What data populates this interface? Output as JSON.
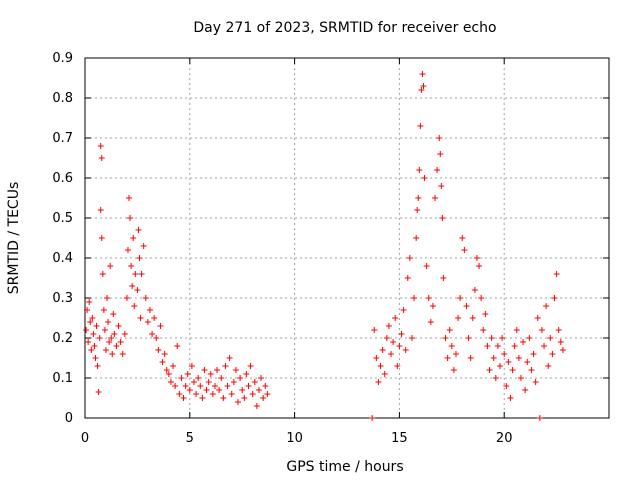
{
  "chart_data": {
    "type": "scatter",
    "title": "Day 271 of 2023, SRMTID for receiver echo",
    "xlabel": "GPS time / hours",
    "ylabel": "SRMTID / TECUs",
    "xlim": [
      0,
      25
    ],
    "ylim": [
      0,
      0.9
    ],
    "xticks": [
      0,
      5,
      10,
      15,
      20
    ],
    "yticks": [
      0,
      0.1,
      0.2,
      0.3,
      0.4,
      0.5,
      0.6,
      0.7,
      0.8,
      0.9
    ],
    "xtick_labels": [
      "0",
      "5",
      "10",
      "15",
      "20"
    ],
    "ytick_labels": [
      "0",
      "0.1",
      "0.2",
      "0.3",
      "0.4",
      "0.5",
      "0.6",
      "0.7",
      "0.8",
      "0.9"
    ],
    "grid": true,
    "marker": "+",
    "color": "#ff0000",
    "series": [
      {
        "name": "SRMTID",
        "points": [
          [
            0.05,
            0.22
          ],
          [
            0.1,
            0.27
          ],
          [
            0.15,
            0.19
          ],
          [
            0.2,
            0.29
          ],
          [
            0.25,
            0.24
          ],
          [
            0.3,
            0.17
          ],
          [
            0.35,
            0.25
          ],
          [
            0.4,
            0.21
          ],
          [
            0.45,
            0.18
          ],
          [
            0.5,
            0.15
          ],
          [
            0.55,
            0.23
          ],
          [
            0.6,
            0.13
          ],
          [
            0.65,
            0.065
          ],
          [
            0.7,
            0.2
          ],
          [
            0.75,
            0.52
          ],
          [
            0.75,
            0.68
          ],
          [
            0.8,
            0.65
          ],
          [
            0.8,
            0.45
          ],
          [
            0.85,
            0.36
          ],
          [
            0.9,
            0.27
          ],
          [
            0.95,
            0.22
          ],
          [
            1.0,
            0.17
          ],
          [
            1.05,
            0.3
          ],
          [
            1.1,
            0.24
          ],
          [
            1.15,
            0.19
          ],
          [
            1.2,
            0.38
          ],
          [
            1.25,
            0.2
          ],
          [
            1.3,
            0.16
          ],
          [
            1.35,
            0.26
          ],
          [
            1.4,
            0.21
          ],
          [
            1.5,
            0.18
          ],
          [
            1.6,
            0.23
          ],
          [
            1.7,
            0.19
          ],
          [
            1.8,
            0.16
          ],
          [
            1.9,
            0.21
          ],
          [
            2.0,
            0.3
          ],
          [
            2.05,
            0.42
          ],
          [
            2.1,
            0.55
          ],
          [
            2.15,
            0.5
          ],
          [
            2.2,
            0.38
          ],
          [
            2.25,
            0.33
          ],
          [
            2.3,
            0.45
          ],
          [
            2.35,
            0.28
          ],
          [
            2.4,
            0.36
          ],
          [
            2.5,
            0.32
          ],
          [
            2.55,
            0.47
          ],
          [
            2.6,
            0.4
          ],
          [
            2.65,
            0.25
          ],
          [
            2.7,
            0.36
          ],
          [
            2.8,
            0.43
          ],
          [
            2.9,
            0.3
          ],
          [
            3.0,
            0.24
          ],
          [
            3.1,
            0.27
          ],
          [
            3.2,
            0.21
          ],
          [
            3.3,
            0.25
          ],
          [
            3.4,
            0.2
          ],
          [
            3.5,
            0.17
          ],
          [
            3.6,
            0.23
          ],
          [
            3.7,
            0.14
          ],
          [
            3.8,
            0.16
          ],
          [
            3.9,
            0.12
          ],
          [
            4.0,
            0.11
          ],
          [
            4.1,
            0.09
          ],
          [
            4.2,
            0.13
          ],
          [
            4.3,
            0.08
          ],
          [
            4.4,
            0.18
          ],
          [
            4.5,
            0.06
          ],
          [
            4.6,
            0.1
          ],
          [
            4.7,
            0.05
          ],
          [
            4.8,
            0.08
          ],
          [
            4.9,
            0.11
          ],
          [
            5.0,
            0.07
          ],
          [
            5.1,
            0.13
          ],
          [
            5.2,
            0.09
          ],
          [
            5.3,
            0.06
          ],
          [
            5.4,
            0.1
          ],
          [
            5.5,
            0.08
          ],
          [
            5.6,
            0.05
          ],
          [
            5.7,
            0.12
          ],
          [
            5.8,
            0.07
          ],
          [
            5.9,
            0.09
          ],
          [
            6.0,
            0.11
          ],
          [
            6.1,
            0.06
          ],
          [
            6.2,
            0.08
          ],
          [
            6.3,
            0.12
          ],
          [
            6.4,
            0.07
          ],
          [
            6.5,
            0.1
          ],
          [
            6.6,
            0.05
          ],
          [
            6.7,
            0.13
          ],
          [
            6.8,
            0.08
          ],
          [
            6.9,
            0.15
          ],
          [
            7.0,
            0.06
          ],
          [
            7.1,
            0.09
          ],
          [
            7.2,
            0.12
          ],
          [
            7.3,
            0.04
          ],
          [
            7.4,
            0.1
          ],
          [
            7.5,
            0.07
          ],
          [
            7.6,
            0.05
          ],
          [
            7.7,
            0.11
          ],
          [
            7.8,
            0.08
          ],
          [
            7.9,
            0.13
          ],
          [
            8.0,
            0.06
          ],
          [
            8.1,
            0.09
          ],
          [
            8.2,
            0.03
          ],
          [
            8.3,
            0.07
          ],
          [
            8.4,
            0.1
          ],
          [
            8.5,
            0.05
          ],
          [
            8.6,
            0.08
          ],
          [
            8.7,
            0.06
          ],
          [
            13.7,
            0.0
          ],
          [
            13.8,
            0.22
          ],
          [
            13.9,
            0.15
          ],
          [
            14.0,
            0.09
          ],
          [
            14.1,
            0.13
          ],
          [
            14.2,
            0.17
          ],
          [
            14.3,
            0.11
          ],
          [
            14.4,
            0.2
          ],
          [
            14.5,
            0.23
          ],
          [
            14.6,
            0.16
          ],
          [
            14.7,
            0.19
          ],
          [
            14.8,
            0.25
          ],
          [
            14.9,
            0.13
          ],
          [
            15.0,
            0.18
          ],
          [
            15.1,
            0.21
          ],
          [
            15.2,
            0.27
          ],
          [
            15.3,
            0.17
          ],
          [
            15.4,
            0.35
          ],
          [
            15.5,
            0.4
          ],
          [
            15.6,
            0.2
          ],
          [
            15.7,
            0.3
          ],
          [
            15.8,
            0.45
          ],
          [
            15.85,
            0.52
          ],
          [
            15.9,
            0.55
          ],
          [
            15.95,
            0.62
          ],
          [
            16.0,
            0.73
          ],
          [
            16.05,
            0.82
          ],
          [
            16.1,
            0.86
          ],
          [
            16.15,
            0.83
          ],
          [
            16.2,
            0.6
          ],
          [
            16.3,
            0.38
          ],
          [
            16.4,
            0.3
          ],
          [
            16.5,
            0.24
          ],
          [
            16.6,
            0.28
          ],
          [
            16.7,
            0.55
          ],
          [
            16.8,
            0.62
          ],
          [
            16.9,
            0.7
          ],
          [
            16.95,
            0.66
          ],
          [
            17.0,
            0.58
          ],
          [
            17.05,
            0.5
          ],
          [
            17.1,
            0.35
          ],
          [
            17.2,
            0.2
          ],
          [
            17.3,
            0.15
          ],
          [
            17.4,
            0.22
          ],
          [
            17.5,
            0.18
          ],
          [
            17.6,
            0.12
          ],
          [
            17.7,
            0.16
          ],
          [
            17.8,
            0.25
          ],
          [
            17.9,
            0.3
          ],
          [
            18.0,
            0.45
          ],
          [
            18.1,
            0.42
          ],
          [
            18.2,
            0.28
          ],
          [
            18.3,
            0.2
          ],
          [
            18.4,
            0.15
          ],
          [
            18.5,
            0.25
          ],
          [
            18.6,
            0.32
          ],
          [
            18.7,
            0.4
          ],
          [
            18.8,
            0.38
          ],
          [
            18.9,
            0.3
          ],
          [
            19.0,
            0.22
          ],
          [
            19.1,
            0.26
          ],
          [
            19.2,
            0.18
          ],
          [
            19.3,
            0.12
          ],
          [
            19.4,
            0.2
          ],
          [
            19.5,
            0.15
          ],
          [
            19.6,
            0.1
          ],
          [
            19.7,
            0.18
          ],
          [
            19.8,
            0.13
          ],
          [
            19.9,
            0.2
          ],
          [
            20.0,
            0.16
          ],
          [
            20.1,
            0.08
          ],
          [
            20.2,
            0.14
          ],
          [
            20.3,
            0.05
          ],
          [
            20.4,
            0.12
          ],
          [
            20.5,
            0.18
          ],
          [
            20.6,
            0.22
          ],
          [
            20.7,
            0.15
          ],
          [
            20.8,
            0.1
          ],
          [
            20.9,
            0.19
          ],
          [
            21.0,
            0.07
          ],
          [
            21.1,
            0.14
          ],
          [
            21.2,
            0.2
          ],
          [
            21.3,
            0.12
          ],
          [
            21.4,
            0.16
          ],
          [
            21.5,
            0.09
          ],
          [
            21.6,
            0.25
          ],
          [
            21.7,
            0.0
          ],
          [
            21.8,
            0.22
          ],
          [
            21.9,
            0.18
          ],
          [
            22.0,
            0.28
          ],
          [
            22.1,
            0.13
          ],
          [
            22.2,
            0.2
          ],
          [
            22.3,
            0.16
          ],
          [
            22.4,
            0.3
          ],
          [
            22.5,
            0.36
          ],
          [
            22.6,
            0.22
          ],
          [
            22.7,
            0.19
          ],
          [
            22.8,
            0.17
          ]
        ]
      }
    ]
  }
}
